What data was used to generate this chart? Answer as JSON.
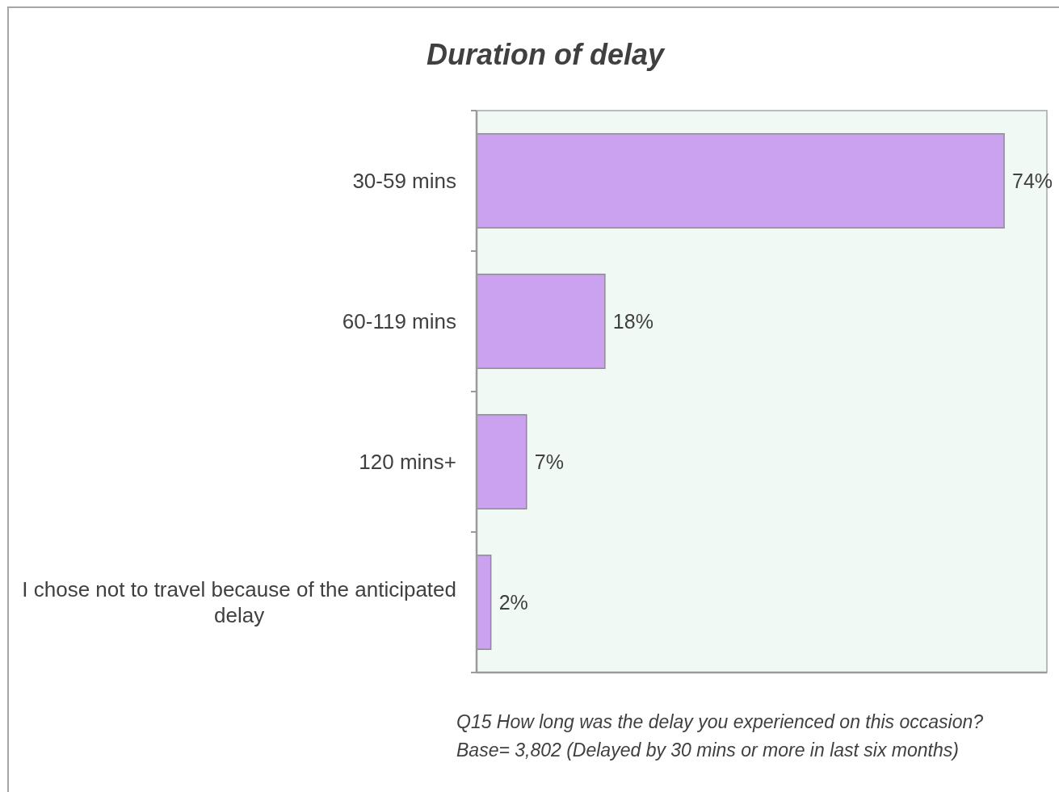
{
  "chart_data": {
    "type": "bar",
    "orientation": "horizontal",
    "title": "Duration of delay",
    "categories": [
      "30-59 mins",
      "60-119 mins",
      "120 mins+",
      "I chose not to travel because of the anticipated delay"
    ],
    "values": [
      74,
      18,
      7,
      2
    ],
    "value_labels": [
      "74%",
      "18%",
      "7%",
      "2%"
    ],
    "color": "#cba2f0",
    "xlim": [
      0,
      80
    ],
    "tick_labels": "y",
    "annotations": [
      "Q15 How long was the delay you experienced on this occasion?",
      "Base= 3,802 (Delayed by 30 mins or more in last six months)"
    ]
  }
}
